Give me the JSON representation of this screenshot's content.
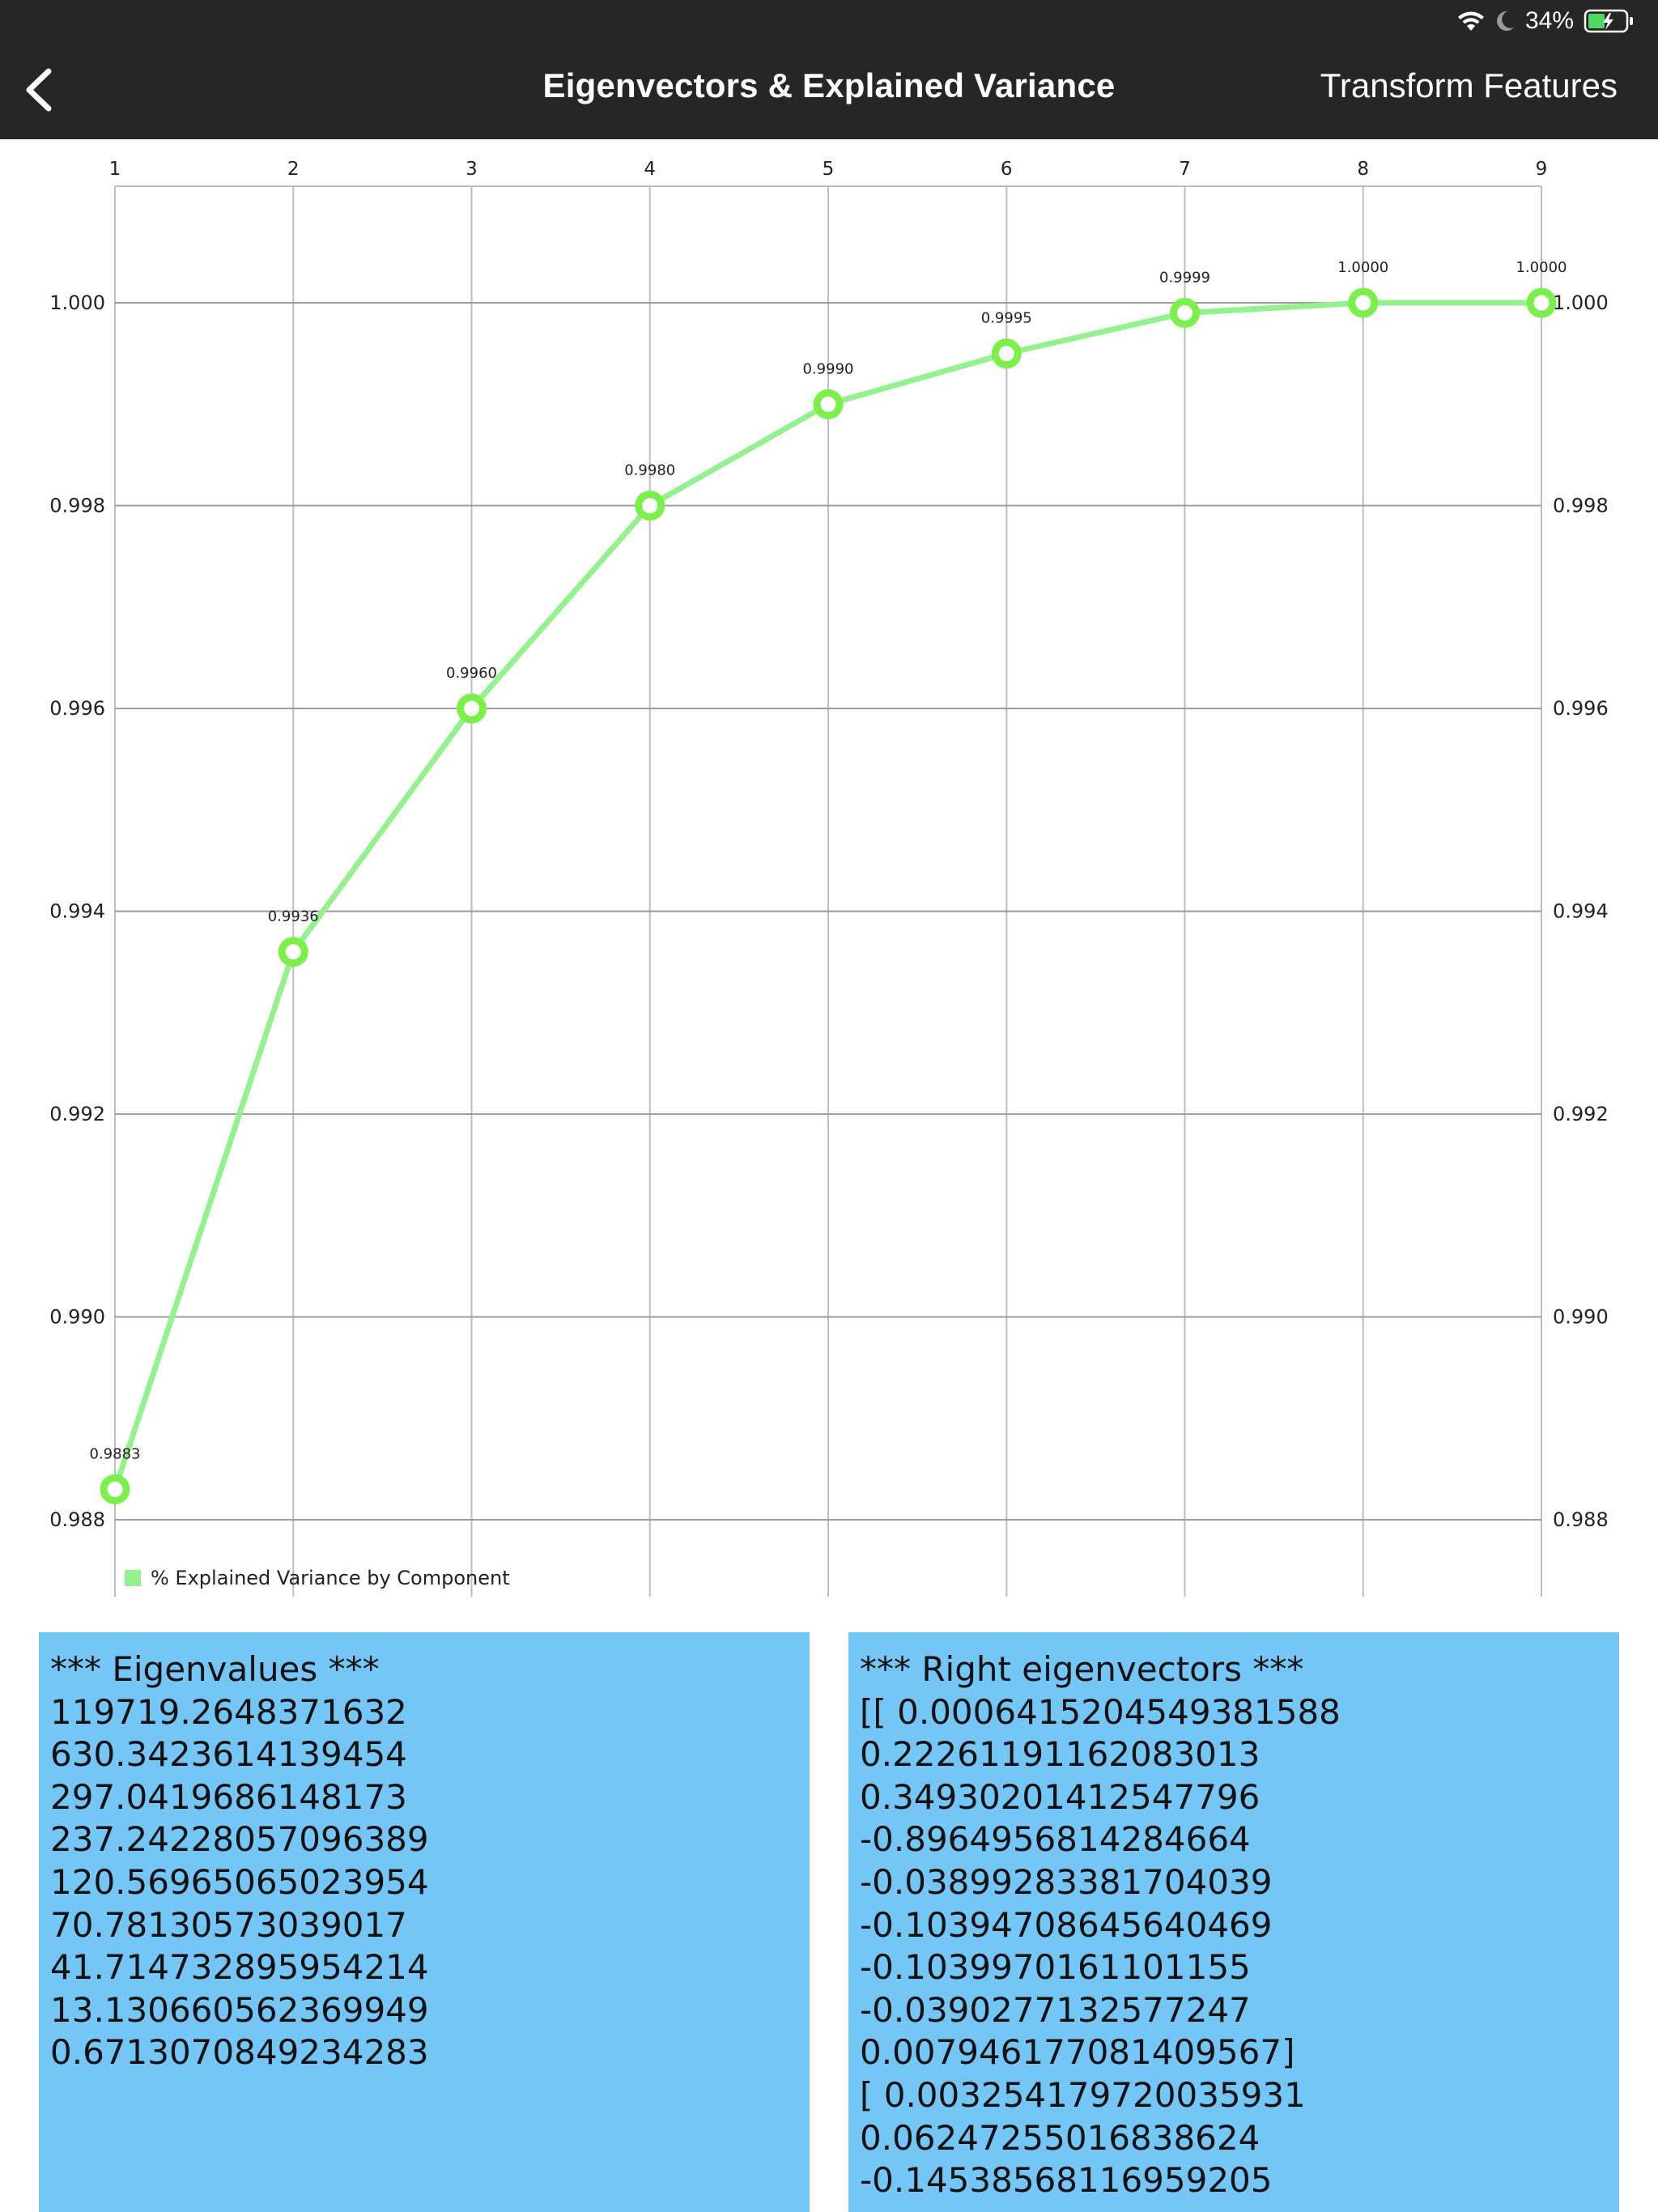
{
  "status_bar": {
    "battery_percent": "34%",
    "icons": [
      "wifi-icon",
      "moon-icon",
      "battery-charging-icon"
    ]
  },
  "nav": {
    "back_icon": "chevron-left-icon",
    "title": "Eigenvectors & Explained Variance",
    "action_label": "Transform Features"
  },
  "chart_data": {
    "type": "line",
    "x": [
      1,
      2,
      3,
      4,
      5,
      6,
      7,
      8,
      9
    ],
    "x_tick_labels": [
      "1",
      "2",
      "3",
      "4",
      "5",
      "6",
      "7",
      "8",
      "9"
    ],
    "y_tick_values": [
      0.988,
      0.99,
      0.992,
      0.994,
      0.996,
      0.998,
      1.0
    ],
    "y_tick_labels": [
      "0.988",
      "0.990",
      "0.992",
      "0.994",
      "0.996",
      "0.998",
      "1.000"
    ],
    "ylim": [
      0.9878,
      1.00115
    ],
    "series": [
      {
        "name": "% Explained Variance by Component",
        "values": [
          0.9883,
          0.9936,
          0.996,
          0.998,
          0.999,
          0.9995,
          0.9999,
          1.0,
          1.0
        ],
        "point_labels": [
          "0.9883",
          "0.9936",
          "0.9960",
          "0.9980",
          "0.9990",
          "0.9995",
          "0.9999",
          "1.0000",
          "1.0000"
        ],
        "color": "#94f28e",
        "marker_color": "#7cf04a"
      }
    ],
    "x_axis_position": "top",
    "y_axis_position": "left and right",
    "grid": true,
    "legend_position": "bottom-left"
  },
  "panels": {
    "eigenvalues": {
      "lines": [
        "*** Eigenvalues ***",
        "119719.2648371632",
        "630.3423614139454",
        "297.0419686148173",
        "237.24228057096389",
        "120.56965065023954",
        "70.78130573039017",
        "41.714732895954214",
        "13.130660562369949",
        "0.6713070849234283"
      ]
    },
    "eigenvectors": {
      "lines": [
        "*** Right eigenvectors ***",
        "[[ 0.0006415204549381588",
        "0.22261191162083013",
        "0.34930201412547796",
        "-0.8964956814284664",
        "-0.03899283381704039",
        "-0.10394708645640469",
        "-0.1039970161101155",
        "-0.0390277132577247",
        "0.007946177081409567]",
        "[ 0.003254179720035931",
        "0.06247255016838624",
        "-0.14538568116959205"
      ]
    }
  }
}
